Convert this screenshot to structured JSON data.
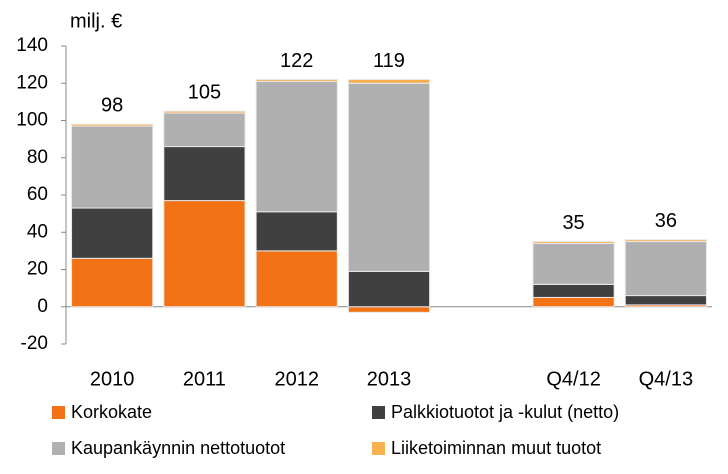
{
  "chart_data": {
    "type": "stacked-bar",
    "title": "milj. €",
    "categories": [
      "2010",
      "2011",
      "2012",
      "2013",
      null,
      "Q4/12",
      "Q4/13"
    ],
    "series": [
      {
        "name": "Korkokate",
        "color": "#f47216",
        "values": [
          26,
          57,
          30,
          -3,
          null,
          5,
          1
        ]
      },
      {
        "name": "Palkkiotuotot ja -kulut (netto)",
        "color": "#404040",
        "values": [
          27,
          29,
          21,
          19,
          null,
          7,
          5
        ]
      },
      {
        "name": "Kaupankäynnin nettotuotot",
        "color": "#b0b0b0",
        "values": [
          44,
          18,
          70,
          101,
          null,
          22,
          29
        ]
      },
      {
        "name": "Liiketoiminnan muut tuotot",
        "color": "#f9b04f",
        "values": [
          1,
          1,
          1,
          2,
          null,
          1,
          1
        ]
      }
    ],
    "totals": [
      98,
      105,
      122,
      119,
      null,
      35,
      36
    ],
    "ylim": [
      -20,
      140
    ],
    "yticks": [
      -20,
      0,
      20,
      40,
      60,
      80,
      100,
      120,
      140
    ]
  }
}
